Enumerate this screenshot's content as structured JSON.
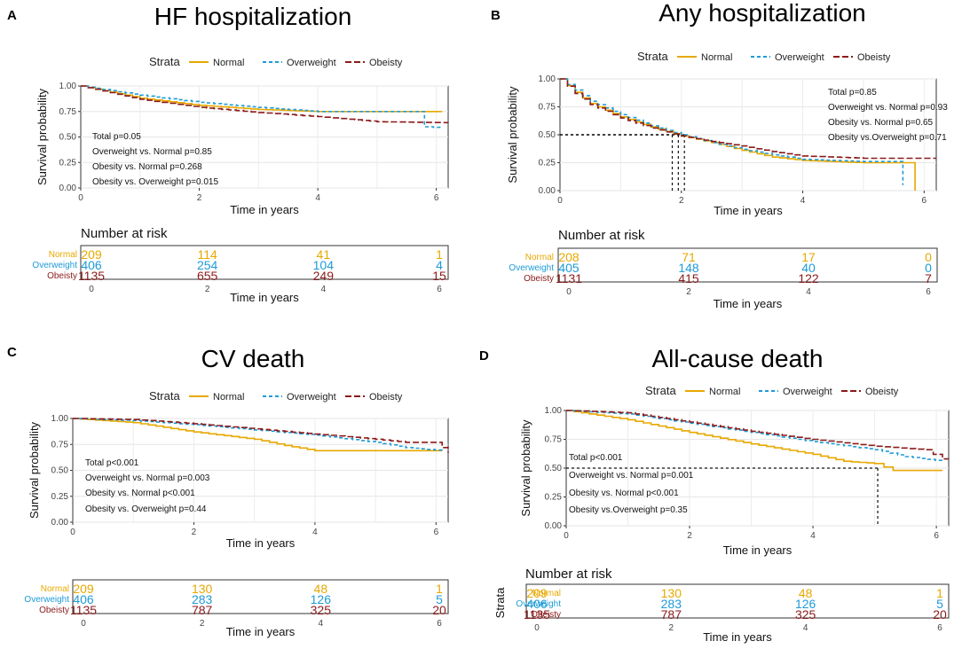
{
  "colors": {
    "normal": "#E7A800",
    "overweight": "#1E9BD7",
    "obesity": "#8B1A1A"
  },
  "legend": {
    "title": "Strata",
    "labels": [
      "Normal",
      "Overweight",
      "Obeisty"
    ]
  },
  "risk_title": "Number at risk",
  "risk_labels": [
    "Normal",
    "Overweight",
    "Obeisty"
  ],
  "ylabel": "Survival probability",
  "xlabel": "Time in years",
  "y_ticks": [
    "1.00",
    "0.75",
    "0.50",
    "0.25",
    "0.00"
  ],
  "x_ticks": [
    "0",
    "2",
    "4",
    "6"
  ],
  "extra_label": "Strata",
  "chart_data": [
    {
      "letter": "A",
      "type": "line",
      "title": "HF hospitalization",
      "xlabel": "Time in years",
      "ylabel": "Survival probability",
      "xlim": [
        0,
        6.2
      ],
      "ylim": [
        0,
        1
      ],
      "annotations": [
        "Total p=0.05",
        "Overweight vs. Normal p=0.85",
        "Obesity vs. Normal p=0.268",
        "Obesity vs. Overweight p=0.015"
      ],
      "series": [
        {
          "name": "Normal",
          "x": [
            0,
            1,
            2,
            3,
            4,
            5,
            6.1
          ],
          "y": [
            1.0,
            0.88,
            0.81,
            0.77,
            0.75,
            0.75,
            0.75
          ]
        },
        {
          "name": "Overweight",
          "x": [
            0,
            1,
            2,
            3,
            4,
            5,
            5.7,
            5.8,
            6.1
          ],
          "y": [
            1.0,
            0.91,
            0.84,
            0.79,
            0.75,
            0.75,
            0.75,
            0.6,
            0.59
          ]
        },
        {
          "name": "Obeisty",
          "x": [
            0,
            1,
            2,
            3,
            4,
            5,
            6.2
          ],
          "y": [
            1.0,
            0.87,
            0.79,
            0.74,
            0.7,
            0.65,
            0.64
          ]
        }
      ],
      "medians": [],
      "risk_table": {
        "times": [
          0,
          2,
          4,
          6
        ],
        "rows": [
          [
            209,
            114,
            41,
            1
          ],
          [
            406,
            254,
            104,
            4
          ],
          [
            1135,
            655,
            249,
            15
          ]
        ]
      }
    },
    {
      "letter": "B",
      "type": "line",
      "title": "Any hospitalization",
      "xlabel": "Time in years",
      "ylabel": "Survival probability",
      "xlim": [
        0,
        6.2
      ],
      "ylim": [
        0,
        1
      ],
      "annotations": [
        "Total p=0.85",
        "Overweight vs. Normal p=0.93",
        "Obesity vs. Normal p=0.65",
        "Obesity vs.Overweight p=0.71"
      ],
      "series": [
        {
          "name": "Normal",
          "x": [
            0,
            0.25,
            0.5,
            1,
            1.5,
            2,
            2.5,
            3,
            3.5,
            4,
            5,
            5.8,
            5.85
          ],
          "y": [
            1.0,
            0.88,
            0.78,
            0.66,
            0.57,
            0.49,
            0.43,
            0.36,
            0.3,
            0.27,
            0.25,
            0.25,
            0.0
          ]
        },
        {
          "name": "Overweight",
          "x": [
            0,
            0.25,
            0.5,
            1,
            1.5,
            2,
            2.5,
            3,
            3.5,
            4,
            5,
            5.6,
            5.65
          ],
          "y": [
            1.0,
            0.9,
            0.8,
            0.68,
            0.58,
            0.5,
            0.43,
            0.37,
            0.32,
            0.28,
            0.26,
            0.26,
            0.05
          ]
        },
        {
          "name": "Obeisty",
          "x": [
            0,
            0.25,
            0.5,
            1,
            1.5,
            2,
            2.5,
            3,
            3.5,
            4,
            5,
            6.2
          ],
          "y": [
            1.0,
            0.87,
            0.77,
            0.65,
            0.56,
            0.49,
            0.44,
            0.4,
            0.35,
            0.31,
            0.29,
            0.29
          ]
        }
      ],
      "medians": [
        1.85,
        1.95,
        2.05
      ],
      "risk_table": {
        "times": [
          0,
          2,
          4,
          6
        ],
        "rows": [
          [
            208,
            71,
            17,
            0
          ],
          [
            405,
            148,
            40,
            0
          ],
          [
            1131,
            415,
            122,
            7
          ]
        ]
      }
    },
    {
      "letter": "C",
      "type": "line",
      "title": "CV death",
      "xlabel": "Time in years",
      "ylabel": "Survival probability",
      "xlim": [
        0,
        6.2
      ],
      "ylim": [
        0,
        1
      ],
      "annotations": [
        "Total p<0.001",
        "Overweight vs. Normal p=0.003",
        "Obesity vs. Normal p<0.001",
        "Obesity vs. Overweight p=0.44"
      ],
      "series": [
        {
          "name": "Normal",
          "x": [
            0,
            1,
            2,
            3,
            3.5,
            4,
            5,
            6.1
          ],
          "y": [
            1.0,
            0.96,
            0.87,
            0.8,
            0.74,
            0.69,
            0.69,
            0.69
          ]
        },
        {
          "name": "Overweight",
          "x": [
            0,
            1,
            2,
            3,
            4,
            5,
            5.5,
            6.1
          ],
          "y": [
            1.0,
            0.98,
            0.94,
            0.89,
            0.84,
            0.77,
            0.72,
            0.69
          ]
        },
        {
          "name": "Obeisty",
          "x": [
            0,
            1,
            2,
            3,
            4,
            5,
            5.5,
            6.0,
            6.2
          ],
          "y": [
            1.0,
            0.99,
            0.95,
            0.9,
            0.85,
            0.8,
            0.77,
            0.77,
            0.67
          ]
        }
      ],
      "medians": [],
      "risk_table": {
        "times": [
          0,
          2,
          4,
          6
        ],
        "rows": [
          [
            209,
            130,
            48,
            1
          ],
          [
            406,
            283,
            126,
            5
          ],
          [
            1135,
            787,
            325,
            20
          ]
        ]
      }
    },
    {
      "letter": "D",
      "type": "line",
      "title": "All-cause death",
      "xlabel": "Time in years",
      "ylabel": "Survival probability",
      "xlim": [
        0,
        6.2
      ],
      "ylim": [
        0,
        1
      ],
      "annotations": [
        "Total p<0.001",
        "Overweight vs. Normal p=0.001",
        "Obesity vs. Normal p<0.001",
        "Obesity vs.Overweight p=0.35"
      ],
      "series": [
        {
          "name": "Normal",
          "x": [
            0,
            1,
            2,
            3,
            4,
            4.5,
            5,
            5.3,
            6.1
          ],
          "y": [
            1.0,
            0.92,
            0.81,
            0.71,
            0.62,
            0.56,
            0.54,
            0.48,
            0.48
          ]
        },
        {
          "name": "Overweight",
          "x": [
            0,
            1,
            2,
            3,
            4,
            5,
            5.5,
            6.1
          ],
          "y": [
            1.0,
            0.97,
            0.89,
            0.81,
            0.73,
            0.66,
            0.6,
            0.56
          ]
        },
        {
          "name": "Obeisty",
          "x": [
            0,
            1,
            2,
            3,
            4,
            5,
            5.8,
            6.1,
            6.2
          ],
          "y": [
            1.0,
            0.98,
            0.9,
            0.82,
            0.75,
            0.69,
            0.66,
            0.58,
            0.58
          ]
        }
      ],
      "medians": [
        5.05
      ],
      "risk_table": {
        "times": [
          0,
          2,
          4,
          6
        ],
        "rows": [
          [
            209,
            130,
            48,
            1
          ],
          [
            406,
            283,
            126,
            5
          ],
          [
            1135,
            787,
            325,
            20
          ]
        ]
      }
    }
  ]
}
